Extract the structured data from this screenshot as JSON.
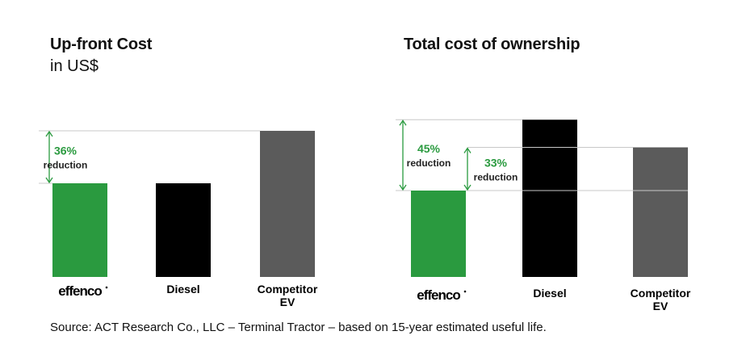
{
  "colors": {
    "effenco": "#2a9a3f",
    "diesel": "#000000",
    "competitor": "#5b5b5b",
    "reduction_text": "#2a9a3f",
    "arrow": "#2a9a3f",
    "guide_line": "#c8c8c8"
  },
  "source": "Source: ACT Research Co., LLC – Terminal Tractor – based on 15-year estimated useful life.",
  "chart_data": [
    {
      "type": "bar",
      "title": "Up-front Cost",
      "subtitle": "in US$",
      "categories": [
        {
          "label": "effenco",
          "style": "logo"
        },
        {
          "label": "Diesel",
          "style": "text"
        },
        {
          "label": "Competitor\nEV",
          "style": "text"
        }
      ],
      "values": [
        100,
        100,
        156
      ],
      "value_unit": "relative height (effenco = 100)",
      "axis_visible": false,
      "annotations": [
        {
          "pct": "36%",
          "text": "reduction",
          "from_category": 2,
          "to_category": 0
        }
      ]
    },
    {
      "type": "bar",
      "title": "Total cost of ownership",
      "subtitle": "",
      "categories": [
        {
          "label": "effenco",
          "style": "logo"
        },
        {
          "label": "Diesel",
          "style": "text"
        },
        {
          "label": "Competitor\nEV",
          "style": "text"
        }
      ],
      "values": [
        100,
        182,
        150
      ],
      "value_unit": "relative height (effenco = 100)",
      "axis_visible": false,
      "annotations": [
        {
          "pct": "45%",
          "text": "reduction",
          "from_category": 1,
          "to_category": 0
        },
        {
          "pct": "33%",
          "text": "reduction",
          "from_category": 2,
          "to_category": 0
        }
      ]
    }
  ]
}
